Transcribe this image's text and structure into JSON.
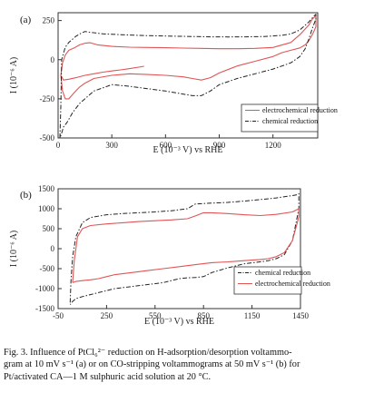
{
  "caption": {
    "line1": "Fig. 3.  Influence of PtCl₆²⁻ reduction on H-adsorption/desorption voltammo-",
    "line2": "gram at 10 mV s⁻¹ (a) or on CO-stripping voltammograms at 50 mV s⁻¹ (b) for",
    "line3": "Pt/activated CA—1 M sulphuric acid solution at 20 °C."
  },
  "colors": {
    "electrochemical": "#e05555",
    "chemical": "#222222",
    "axis": "#333333"
  },
  "chart_data": [
    {
      "type": "line",
      "panel_label": "(a)",
      "xlabel": "E (10⁻³ V) vs RHE",
      "ylabel": "I (10⁻⁶ A)",
      "xlim": [
        0,
        1450
      ],
      "ylim": [
        -500,
        300
      ],
      "xticks": [
        0,
        300,
        600,
        900,
        1200
      ],
      "yticks": [
        250,
        0,
        -250,
        -500
      ],
      "grid": false,
      "legend": {
        "placement": "bottom-right",
        "order": [
          "electrochemical reduction",
          "chemical reduction"
        ]
      },
      "series": [
        {
          "name": "electrochemical reduction",
          "style": "solid",
          "x": [
            15,
            25,
            40,
            60,
            90,
            120,
            150,
            180,
            220,
            300,
            400,
            500,
            600,
            700,
            800,
            900,
            1000,
            1100,
            1200,
            1300,
            1350,
            1400,
            1420,
            1440,
            1440,
            1420,
            1400,
            1380,
            1350,
            1300,
            1250,
            1200,
            1100,
            1000,
            900,
            850,
            800,
            750,
            700,
            600,
            500,
            400,
            300,
            200,
            150,
            120,
            90,
            60,
            40,
            25,
            15,
            30,
            60,
            100,
            150,
            200,
            250,
            300,
            350,
            400,
            450,
            480
          ],
          "y": [
            -100,
            -20,
            30,
            60,
            75,
            95,
            105,
            108,
            95,
            85,
            80,
            78,
            76,
            74,
            72,
            70,
            70,
            72,
            78,
            110,
            160,
            220,
            260,
            280,
            210,
            160,
            120,
            95,
            75,
            60,
            45,
            20,
            -10,
            -40,
            -85,
            -115,
            -130,
            -120,
            -110,
            -100,
            -95,
            -90,
            -100,
            -120,
            -150,
            -175,
            -210,
            -250,
            -250,
            -200,
            -100,
            -130,
            -125,
            -115,
            -100,
            -90,
            -80,
            -72,
            -65,
            -57,
            -48,
            -42
          ]
        },
        {
          "name": "chemical reduction",
          "style": "dash-dot",
          "x": [
            10,
            15,
            20,
            40,
            60,
            80,
            100,
            130,
            150,
            180,
            250,
            350,
            450,
            550,
            650,
            750,
            850,
            950,
            1050,
            1150,
            1250,
            1300,
            1350,
            1400,
            1430,
            1440,
            1440,
            1420,
            1400,
            1380,
            1350,
            1300,
            1250,
            1200,
            1100,
            1000,
            900,
            850,
            800,
            750,
            700,
            600,
            500,
            400,
            300,
            200,
            120,
            80,
            50,
            30,
            20,
            10
          ],
          "y": [
            -500,
            -300,
            0,
            80,
            110,
            130,
            150,
            170,
            180,
            175,
            165,
            160,
            155,
            152,
            150,
            148,
            146,
            145,
            146,
            148,
            155,
            165,
            190,
            240,
            280,
            290,
            260,
            200,
            130,
            70,
            20,
            -20,
            -40,
            -60,
            -90,
            -120,
            -160,
            -200,
            -230,
            -230,
            -220,
            -200,
            -185,
            -170,
            -160,
            -200,
            -280,
            -340,
            -400,
            -430,
            -470,
            -500
          ]
        }
      ]
    },
    {
      "type": "line",
      "panel_label": "(b)",
      "xlabel": "E (10⁻³ V) vs RHE",
      "ylabel": "I (10⁻⁶ A)",
      "xlim": [
        -50,
        1450
      ],
      "ylim": [
        -1500,
        1500
      ],
      "xticks": [
        -50,
        250,
        550,
        850,
        1150,
        1450
      ],
      "yticks": [
        1500,
        1000,
        500,
        0,
        -500,
        -1000,
        -1500
      ],
      "ytick_labels": [
        "1500",
        "1000",
        "500",
        "0",
        "-500",
        "-1000",
        "-1500"
      ],
      "grid": false,
      "legend": {
        "placement": "bottom-right",
        "order": [
          "chemical reduction",
          "electrochemical reduction"
        ]
      },
      "series": [
        {
          "name": "chemical reduction",
          "style": "dash-dot",
          "x": [
            25,
            30,
            40,
            60,
            100,
            150,
            250,
            350,
            450,
            550,
            650,
            750,
            800,
            900,
            1000,
            1100,
            1200,
            1300,
            1350,
            1400,
            1430,
            1440,
            1440,
            1420,
            1400,
            1350,
            1300,
            1250,
            1200,
            1100,
            1000,
            900,
            850,
            800,
            750,
            700,
            600,
            500,
            400,
            300,
            250,
            200,
            150,
            100,
            60,
            40,
            25
          ],
          "y": [
            -1350,
            -800,
            -200,
            300,
            650,
            780,
            850,
            880,
            900,
            920,
            950,
            1000,
            1120,
            1140,
            1160,
            1190,
            1230,
            1270,
            1300,
            1330,
            1350,
            1380,
            1000,
            600,
            200,
            -150,
            -250,
            -300,
            -330,
            -380,
            -480,
            -600,
            -700,
            -720,
            -730,
            -750,
            -850,
            -900,
            -950,
            -1000,
            -1050,
            -1100,
            -1150,
            -1200,
            -1250,
            -1320,
            -1400
          ]
        },
        {
          "name": "electrochemical reduction",
          "style": "solid",
          "x": [
            40,
            50,
            70,
            100,
            150,
            250,
            350,
            450,
            550,
            650,
            750,
            800,
            850,
            900,
            1000,
            1100,
            1200,
            1300,
            1400,
            1440,
            1440,
            1420,
            1400,
            1350,
            1300,
            1250,
            1200,
            1100,
            1000,
            900,
            800,
            700,
            600,
            500,
            400,
            300,
            250,
            200,
            150,
            100,
            60,
            40
          ],
          "y": [
            -850,
            -300,
            300,
            500,
            580,
            620,
            650,
            680,
            700,
            720,
            750,
            820,
            900,
            900,
            880,
            850,
            830,
            860,
            920,
            1000,
            800,
            500,
            200,
            -100,
            -200,
            -250,
            -270,
            -300,
            -330,
            -350,
            -400,
            -450,
            -500,
            -550,
            -600,
            -650,
            -700,
            -750,
            -780,
            -800,
            -820,
            -850
          ]
        }
      ]
    }
  ]
}
